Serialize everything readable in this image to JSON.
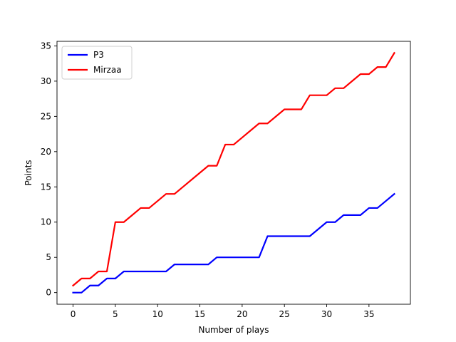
{
  "chart_data": {
    "type": "line",
    "title": "",
    "xlabel": "Number of plays",
    "ylabel": "Points",
    "xlim": [
      -1.9,
      39.9
    ],
    "ylim": [
      -1.65,
      35.65
    ],
    "xticks": [
      0,
      5,
      10,
      15,
      20,
      25,
      30,
      35
    ],
    "yticks": [
      0,
      5,
      10,
      15,
      20,
      25,
      30,
      35
    ],
    "grid": false,
    "legend_position": "top-left",
    "x": [
      0,
      1,
      2,
      3,
      4,
      5,
      6,
      7,
      8,
      9,
      10,
      11,
      12,
      13,
      14,
      15,
      16,
      17,
      18,
      19,
      20,
      21,
      22,
      23,
      24,
      25,
      26,
      27,
      28,
      29,
      30,
      31,
      32,
      33,
      34,
      35,
      36,
      37,
      38
    ],
    "series": [
      {
        "name": "P3",
        "color": "#0000ff",
        "values": [
          0,
          0,
          1,
          1,
          2,
          2,
          3,
          3,
          3,
          3,
          3,
          3,
          4,
          4,
          4,
          4,
          4,
          5,
          5,
          5,
          5,
          5,
          5,
          8,
          8,
          8,
          8,
          8,
          8,
          9,
          10,
          10,
          11,
          11,
          11,
          12,
          12,
          13,
          14
        ]
      },
      {
        "name": "Mirzaa",
        "color": "#ff0000",
        "values": [
          1,
          2,
          2,
          3,
          3,
          10,
          10,
          11,
          12,
          12,
          13,
          14,
          14,
          15,
          16,
          17,
          18,
          18,
          21,
          21,
          22,
          23,
          24,
          24,
          25,
          26,
          26,
          26,
          28,
          28,
          28,
          29,
          29,
          30,
          31,
          31,
          32,
          32,
          34
        ]
      }
    ]
  }
}
